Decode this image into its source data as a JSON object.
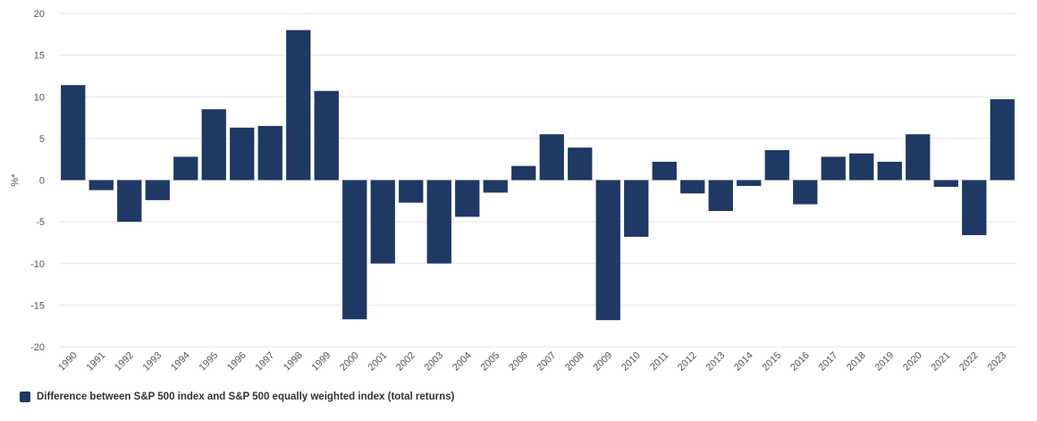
{
  "chart_data": {
    "type": "bar",
    "categories": [
      "1990",
      "1991",
      "1992",
      "1993",
      "1994",
      "1995",
      "1996",
      "1997",
      "1998",
      "1999",
      "2000",
      "2001",
      "2002",
      "2003",
      "2004",
      "2005",
      "2006",
      "2007",
      "2008",
      "2009",
      "2010",
      "2011",
      "2012",
      "2013",
      "2014",
      "2015",
      "2016",
      "2017",
      "2018",
      "2019",
      "2020",
      "2021",
      "2022",
      "2023"
    ],
    "series": [
      {
        "name": "Difference between S&P 500 index and S&P 500 equally weighted index (total returns)",
        "color": "#1f3864",
        "values": [
          11.4,
          -1.2,
          -5.0,
          -2.4,
          2.8,
          8.5,
          6.3,
          6.5,
          18.0,
          10.7,
          -16.7,
          -10.0,
          -2.7,
          -10.0,
          -4.4,
          -1.5,
          1.7,
          5.5,
          3.9,
          -16.8,
          -6.8,
          2.2,
          -1.6,
          -3.7,
          -0.7,
          3.6,
          -2.9,
          2.8,
          3.2,
          2.2,
          5.5,
          -0.8,
          -6.6,
          9.7
        ]
      }
    ],
    "ylabel": "%*",
    "ylim": [
      -20,
      20
    ],
    "yticks": [
      20,
      15,
      10,
      5,
      0,
      -5,
      -10,
      -15,
      -20
    ],
    "grid": true,
    "legend_position": "bottom-left"
  }
}
